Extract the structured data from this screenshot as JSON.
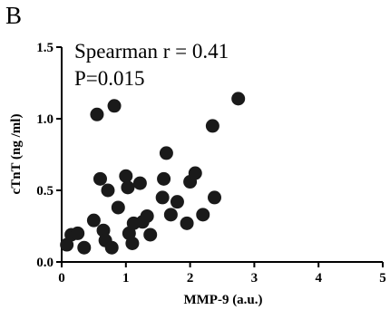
{
  "panel_label": "B",
  "stats": {
    "line1": "Spearman r = 0.41",
    "line2": "P=0.015"
  },
  "chart_data": {
    "type": "scatter",
    "xlabel": "MMP-9 (a.u.)",
    "ylabel": "cTnT (ng /ml)",
    "xlim": [
      0,
      5
    ],
    "ylim": [
      0,
      1.5
    ],
    "xticks": [
      "0",
      "1",
      "2",
      "3",
      "4",
      "5"
    ],
    "yticks": [
      "0.0",
      "0.5",
      "1.0",
      "1.5"
    ],
    "grid": false,
    "marker_color": "#1a1a1a",
    "points": [
      {
        "x": 0.08,
        "y": 0.12
      },
      {
        "x": 0.15,
        "y": 0.19
      },
      {
        "x": 0.25,
        "y": 0.2
      },
      {
        "x": 0.35,
        "y": 0.1
      },
      {
        "x": 0.5,
        "y": 0.29
      },
      {
        "x": 0.55,
        "y": 1.03
      },
      {
        "x": 0.6,
        "y": 0.58
      },
      {
        "x": 0.65,
        "y": 0.22
      },
      {
        "x": 0.68,
        "y": 0.15
      },
      {
        "x": 0.72,
        "y": 0.5
      },
      {
        "x": 0.78,
        "y": 0.1
      },
      {
        "x": 0.82,
        "y": 1.09
      },
      {
        "x": 0.88,
        "y": 0.38
      },
      {
        "x": 1.0,
        "y": 0.6
      },
      {
        "x": 1.03,
        "y": 0.52
      },
      {
        "x": 1.05,
        "y": 0.2
      },
      {
        "x": 1.1,
        "y": 0.13
      },
      {
        "x": 1.12,
        "y": 0.27
      },
      {
        "x": 1.22,
        "y": 0.55
      },
      {
        "x": 1.26,
        "y": 0.28
      },
      {
        "x": 1.33,
        "y": 0.32
      },
      {
        "x": 1.38,
        "y": 0.19
      },
      {
        "x": 1.57,
        "y": 0.45
      },
      {
        "x": 1.59,
        "y": 0.58
      },
      {
        "x": 1.63,
        "y": 0.76
      },
      {
        "x": 1.7,
        "y": 0.33
      },
      {
        "x": 1.8,
        "y": 0.42
      },
      {
        "x": 1.95,
        "y": 0.27
      },
      {
        "x": 2.0,
        "y": 0.56
      },
      {
        "x": 2.08,
        "y": 0.62
      },
      {
        "x": 2.2,
        "y": 0.33
      },
      {
        "x": 2.35,
        "y": 0.95
      },
      {
        "x": 2.38,
        "y": 0.45
      },
      {
        "x": 2.75,
        "y": 1.14
      }
    ]
  }
}
